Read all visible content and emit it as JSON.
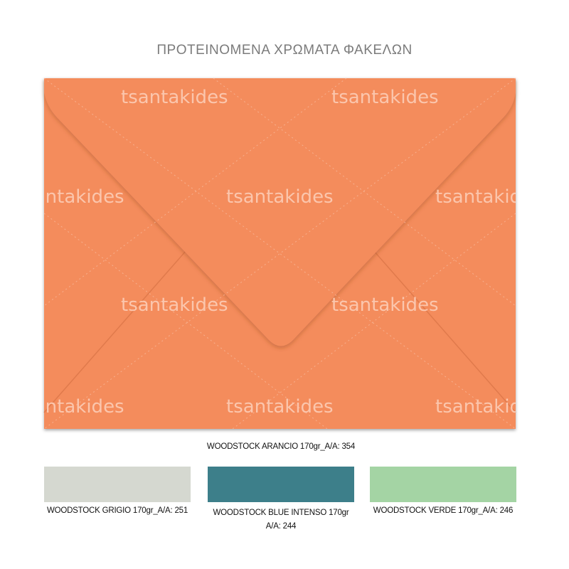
{
  "title": "ΠΡΟΤΕΙΝΟΜΕΝΑ ΧΡΩΜΑΤΑ ΦΑΚΕΛΩΝ",
  "watermark": "tsantakides",
  "main_envelope": {
    "label": "WOODSTOCK ARANCIO 170gr_A/A: 354",
    "color": "#f48c5c"
  },
  "swatches": [
    {
      "label": "WOODSTOCK GRIGIO 170gr_A/A: 251",
      "color": "#d5d8d0"
    },
    {
      "label": "WOODSTOCK BLUE INTENSO 170gr",
      "label2": "A/A: 244",
      "color": "#3d7f8a"
    },
    {
      "label": "WOODSTOCK VERDE 170gr_A/A: 246",
      "color": "#a4d4a4"
    }
  ]
}
